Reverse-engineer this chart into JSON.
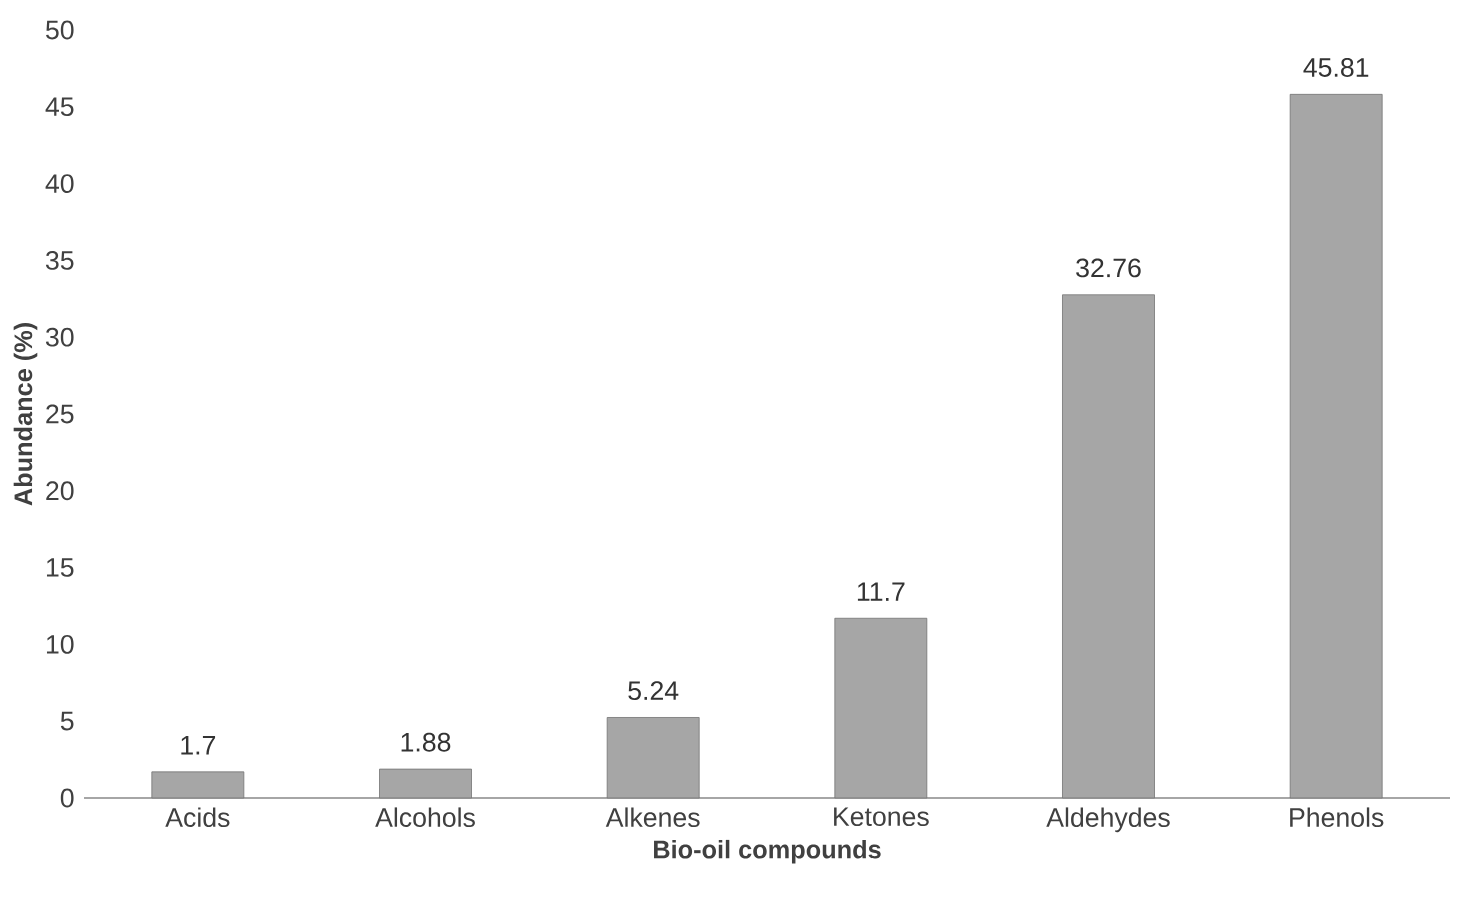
{
  "chart_data": {
    "type": "bar",
    "xlabel": "Bio-oil compounds",
    "ylabel": "Abundance (%)",
    "categories": [
      "Acids",
      "Alcohols",
      "Alkenes",
      "Ketones",
      "Aldehydes",
      "Phenols"
    ],
    "values": [
      1.7,
      1.88,
      5.24,
      11.7,
      32.76,
      45.81
    ],
    "color": "#a6a6a6",
    "ylim": [
      0,
      50
    ],
    "yticks": [
      0,
      5,
      10,
      15,
      20,
      25,
      30,
      35,
      40,
      45,
      50
    ],
    "grid": false,
    "data_labels": true
  }
}
